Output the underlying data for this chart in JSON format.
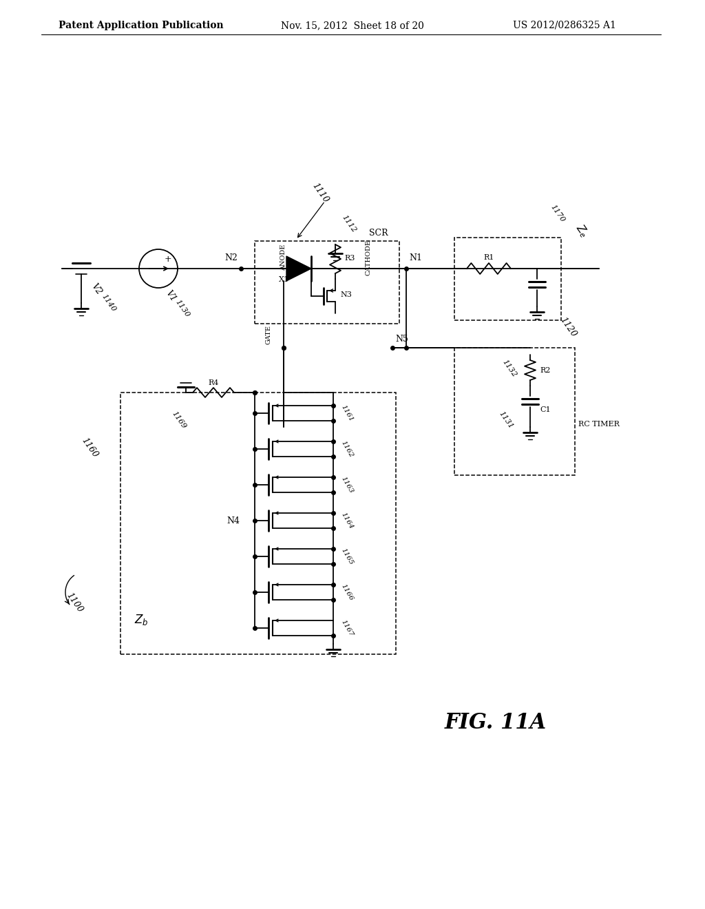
{
  "bg_color": "#ffffff",
  "header_left": "Patent Application Publication",
  "header_mid": "Nov. 15, 2012  Sheet 18 of 20",
  "header_right": "US 2012/0286325 A1"
}
